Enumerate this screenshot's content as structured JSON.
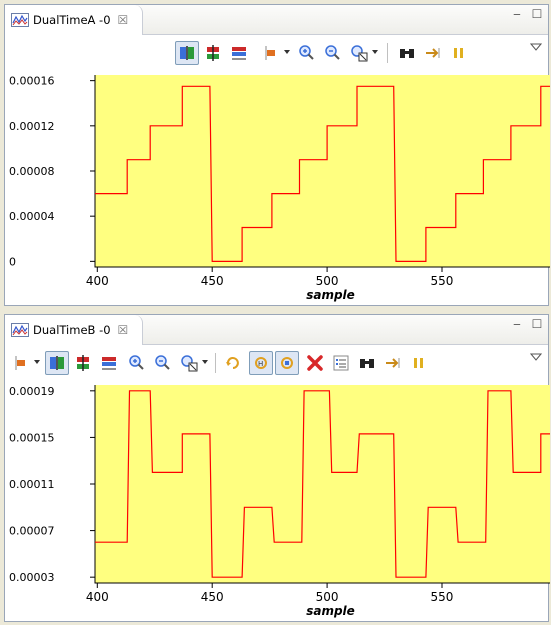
{
  "colors": {
    "plot_background": "#ffff80",
    "series_line": "#ff0000",
    "axis": "#000000"
  },
  "panels": [
    {
      "tab_title": "DualTimeA -0",
      "tab_icon": "waveform-chart-icon",
      "close_glyph": "☒",
      "minimize_glyph": "▭",
      "maximize_glyph": "☐"
    },
    {
      "tab_title": "DualTimeB -0",
      "tab_icon": "waveform-chart-icon",
      "close_glyph": "☒",
      "minimize_glyph": "▭",
      "maximize_glyph": "☐"
    }
  ],
  "toolbarA": [
    "horizontal-layout-icon",
    "vertical-split-icon",
    "histogram-view-icon",
    "axis-marker-icon",
    "zoom-in-icon",
    "zoom-out-icon",
    "zoom-fit-icon",
    "binoculars-find-icon",
    "step-forward-icon",
    "pause-icon"
  ],
  "toolbarB": [
    "axis-marker-icon",
    "horizontal-layout-icon",
    "vertical-split-icon",
    "histogram-view-icon",
    "zoom-in-icon",
    "zoom-out-icon",
    "zoom-fit-icon",
    "refresh-icon",
    "sync-horizontal-icon",
    "sync-both-icon",
    "delete-red-x-icon",
    "list-properties-icon",
    "binoculars-find-icon",
    "step-forward-icon",
    "pause-icon"
  ],
  "chart_data": [
    {
      "type": "line",
      "title": "",
      "xlabel": "sample",
      "ylabel": "",
      "xlim": [
        399,
        597
      ],
      "ylim": [
        -5e-06,
        0.000165
      ],
      "x_ticks": [
        400,
        450,
        500,
        550
      ],
      "y_ticks": [
        0,
        4e-05,
        8e-05,
        0.00012,
        0.00016
      ],
      "y_tick_labels": [
        "0",
        "0.00004",
        "0.00008",
        "0.00012",
        "0.00016"
      ],
      "series": [
        {
          "step_points": [
            [
              399,
              6e-05
            ],
            [
              413,
              6e-05
            ],
            [
              413,
              9e-05
            ],
            [
              423,
              9e-05
            ],
            [
              423,
              0.00012
            ],
            [
              437,
              0.00012
            ],
            [
              437,
              0.000155
            ],
            [
              449,
              0.000155
            ],
            [
              450,
              0.0
            ],
            [
              463,
              0.0
            ],
            [
              463,
              3e-05
            ],
            [
              476,
              3e-05
            ],
            [
              476,
              6e-05
            ],
            [
              488,
              6e-05
            ],
            [
              488,
              9e-05
            ],
            [
              500,
              9e-05
            ],
            [
              500,
              0.00012
            ],
            [
              513,
              0.00012
            ],
            [
              513,
              0.000155
            ],
            [
              529,
              0.000155
            ],
            [
              530,
              0.0
            ],
            [
              543,
              0.0
            ],
            [
              543,
              3e-05
            ],
            [
              556,
              3e-05
            ],
            [
              556,
              6e-05
            ],
            [
              568,
              6e-05
            ],
            [
              568,
              9e-05
            ],
            [
              580,
              9e-05
            ],
            [
              580,
              0.00012
            ],
            [
              593,
              0.00012
            ],
            [
              593,
              0.000155
            ],
            [
              597,
              0.000155
            ]
          ]
        }
      ]
    },
    {
      "type": "line",
      "title": "",
      "xlabel": "sample",
      "ylabel": "",
      "xlim": [
        399,
        597
      ],
      "ylim": [
        2.5e-05,
        0.000195
      ],
      "x_ticks": [
        400,
        450,
        500,
        550
      ],
      "y_ticks": [
        3e-05,
        7e-05,
        0.00011,
        0.00015,
        0.00019
      ],
      "y_tick_labels": [
        "0.00003",
        "0.00007",
        "0.00011",
        "0.00015",
        "0.00019"
      ],
      "series": [
        {
          "step_points": [
            [
              399,
              6e-05
            ],
            [
              413,
              6e-05
            ],
            [
              414,
              0.00019
            ],
            [
              423,
              0.00019
            ],
            [
              424,
              0.00012
            ],
            [
              437,
              0.00012
            ],
            [
              437,
              0.000153
            ],
            [
              449,
              0.000153
            ],
            [
              450,
              3e-05
            ],
            [
              463,
              3e-05
            ],
            [
              464,
              9e-05
            ],
            [
              476,
              9e-05
            ],
            [
              477,
              6e-05
            ],
            [
              489,
              6e-05
            ],
            [
              490,
              0.00019
            ],
            [
              501,
              0.00019
            ],
            [
              502,
              0.00012
            ],
            [
              513,
              0.00012
            ],
            [
              514,
              0.000153
            ],
            [
              529,
              0.000153
            ],
            [
              530,
              3e-05
            ],
            [
              543,
              3e-05
            ],
            [
              544,
              9e-05
            ],
            [
              556,
              9e-05
            ],
            [
              557,
              6e-05
            ],
            [
              569,
              6e-05
            ],
            [
              570,
              0.00019
            ],
            [
              580,
              0.00019
            ],
            [
              581,
              0.00012
            ],
            [
              593,
              0.00012
            ],
            [
              593,
              0.000153
            ],
            [
              597,
              0.000153
            ]
          ]
        }
      ]
    }
  ]
}
